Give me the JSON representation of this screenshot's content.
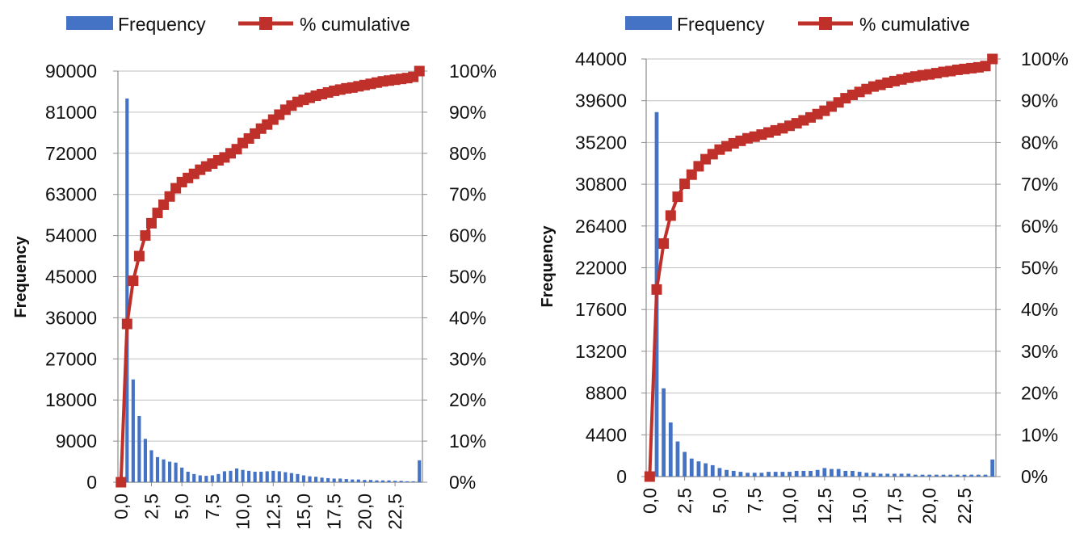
{
  "legend": {
    "bar_label": "Frequency",
    "line_label": "% cumulative"
  },
  "colors": {
    "bars": "#4472C4",
    "line": "#C0302A",
    "grid": "#BFBFBF",
    "axis": "#8C8C8C"
  },
  "chart_data": [
    {
      "type": "bar",
      "ylabel": "Frequency",
      "ylim": [
        0,
        90000
      ],
      "yticks": [
        "0",
        "9000",
        "18000",
        "27000",
        "36000",
        "45000",
        "54000",
        "63000",
        "72000",
        "81000",
        "90000"
      ],
      "y2ticks": [
        "0%",
        "10%",
        "20%",
        "30%",
        "40%",
        "50%",
        "60%",
        "70%",
        "80%",
        "90%",
        "100%"
      ],
      "xtick_labels": [
        "0,0",
        "2,5",
        "5,0",
        "7,5",
        "10,0",
        "12,5",
        "15,0",
        "17,5",
        "20,0",
        "22,5"
      ],
      "x_step": 0.5,
      "series": [
        {
          "name": "Frequency",
          "type": "bar",
          "values": [
            0,
            84000,
            22500,
            14500,
            9500,
            7000,
            5500,
            5000,
            4500,
            4300,
            3200,
            2300,
            1800,
            1500,
            1400,
            1500,
            1800,
            2400,
            2500,
            3000,
            2700,
            2500,
            2300,
            2300,
            2400,
            2500,
            2400,
            2200,
            2000,
            1800,
            1500,
            1300,
            1200,
            1000,
            900,
            800,
            800,
            700,
            600,
            600,
            500,
            500,
            400,
            400,
            400,
            300,
            300,
            200,
            200,
            4800
          ]
        },
        {
          "name": "% cumulative",
          "type": "line",
          "values": [
            0,
            38.5,
            49,
            55,
            60,
            63,
            65.5,
            67.5,
            69.5,
            71.5,
            73,
            74,
            75,
            76,
            76.8,
            77.5,
            78.3,
            79,
            80,
            81,
            82.5,
            83.6,
            84.8,
            86,
            87,
            88.2,
            89.4,
            90.6,
            91.6,
            92.5,
            93,
            93.5,
            94,
            94.4,
            94.8,
            95.2,
            95.5,
            95.8,
            96,
            96.3,
            96.6,
            96.9,
            97.2,
            97.5,
            97.7,
            97.9,
            98.1,
            98.3,
            98.6,
            100
          ]
        }
      ]
    },
    {
      "type": "bar",
      "ylabel": "Frequency",
      "ylim": [
        0,
        44000
      ],
      "yticks": [
        "0",
        "4400",
        "8800",
        "13200",
        "17600",
        "22000",
        "26400",
        "30800",
        "35200",
        "39600",
        "44000"
      ],
      "y2ticks": [
        "0%",
        "10%",
        "20%",
        "30%",
        "40%",
        "50%",
        "60%",
        "70%",
        "80%",
        "90%",
        "100%"
      ],
      "xtick_labels": [
        "0,0",
        "2,5",
        "5,0",
        "7,5",
        "10,0",
        "12,5",
        "15,0",
        "17,5",
        "20,0",
        "22,5"
      ],
      "x_step": 0.5,
      "series": [
        {
          "name": "Frequency",
          "type": "bar",
          "values": [
            0,
            38400,
            9300,
            5700,
            3700,
            2600,
            1900,
            1600,
            1400,
            1200,
            900,
            700,
            600,
            500,
            400,
            400,
            400,
            500,
            500,
            500,
            500,
            600,
            600,
            600,
            700,
            900,
            800,
            800,
            600,
            600,
            500,
            400,
            400,
            300,
            300,
            300,
            300,
            300,
            200,
            200,
            200,
            200,
            200,
            200,
            200,
            200,
            200,
            200,
            200,
            1800
          ]
        },
        {
          "name": "% cumulative",
          "type": "line",
          "values": [
            0,
            44.8,
            55.8,
            62.5,
            67,
            70.1,
            72.3,
            74.3,
            76,
            77.2,
            78.3,
            79.1,
            79.8,
            80.4,
            81,
            81.4,
            81.9,
            82.4,
            82.9,
            83.4,
            84,
            84.6,
            85.3,
            86,
            86.8,
            87.6,
            88.6,
            89.6,
            90.6,
            91.4,
            92.1,
            92.8,
            93.4,
            93.8,
            94.3,
            94.7,
            95.1,
            95.5,
            95.8,
            96.1,
            96.3,
            96.6,
            96.9,
            97.1,
            97.4,
            97.6,
            97.8,
            98,
            98.3,
            100
          ]
        }
      ]
    }
  ]
}
